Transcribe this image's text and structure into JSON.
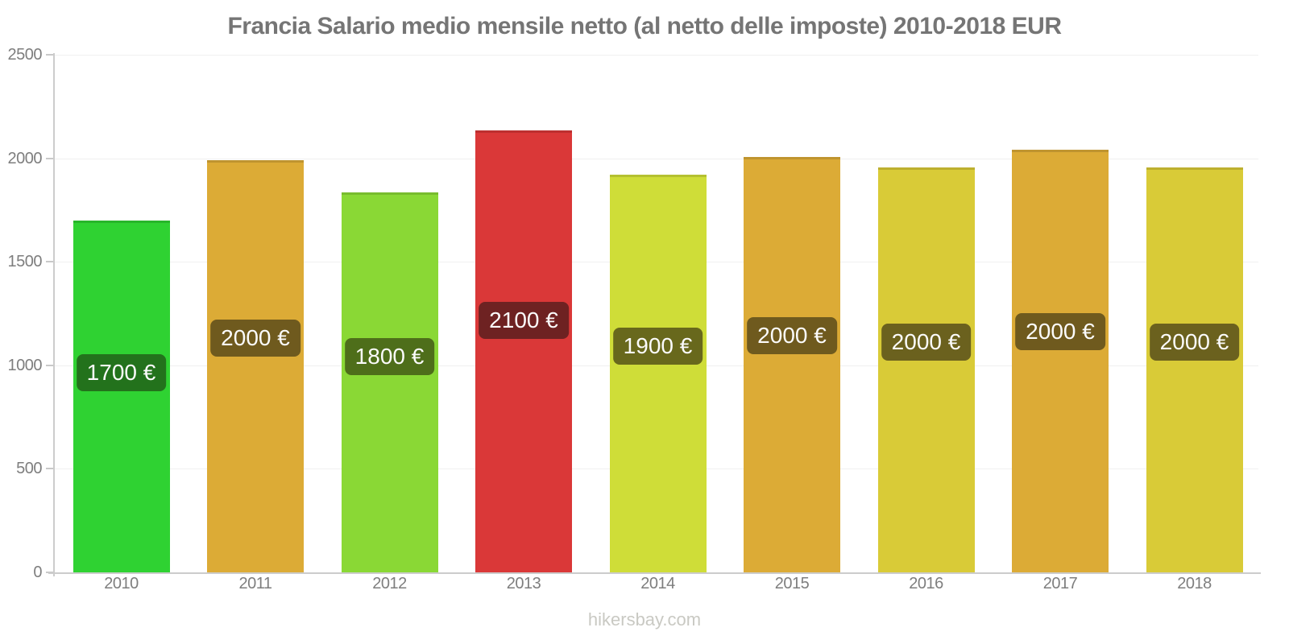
{
  "title": "Francia Salario medio mensile netto (al netto delle imposte) 2010-2018 EUR",
  "footer": "hikersbay.com",
  "colors": {
    "title_text": "#757575",
    "axis_line": "#cccccc",
    "tick_label": "#7e7e7e",
    "gridline": "#f0f0f0",
    "watermark": "#c9c9c3",
    "pill_text": "#fbfbfb"
  },
  "chart_data": {
    "type": "bar",
    "title": "Francia Salario medio mensile netto (al netto delle imposte) 2010-2018 EUR",
    "xlabel": "",
    "ylabel": "",
    "ylim": [
      0,
      2500
    ],
    "yticks": [
      0,
      500,
      1000,
      1500,
      2000,
      2500
    ],
    "grid": "horizontal-faint",
    "legend": "none",
    "currency": "EUR",
    "categories": [
      "2010",
      "2011",
      "2012",
      "2013",
      "2014",
      "2015",
      "2016",
      "2017",
      "2018"
    ],
    "values": [
      1700,
      1990,
      1835,
      2135,
      1920,
      2005,
      1955,
      2040,
      1955
    ],
    "bar_labels": [
      "1700 €",
      "2000 €",
      "1800 €",
      "2100 €",
      "1900 €",
      "2000 €",
      "2000 €",
      "2000 €",
      "2000 €"
    ],
    "bar_colors": [
      "#2fd232",
      "#dcab36",
      "#8ad835",
      "#da3838",
      "#cfdd38",
      "#dcab36",
      "#d9cb37",
      "#dcab36",
      "#d9cb37"
    ],
    "label_bg_colors": [
      "#23721c",
      "#6f5a1e",
      "#4e6e1a",
      "#6e2222",
      "#68681c",
      "#6f5a1e",
      "#6b611e",
      "#6f5a1e",
      "#6b611e"
    ]
  }
}
